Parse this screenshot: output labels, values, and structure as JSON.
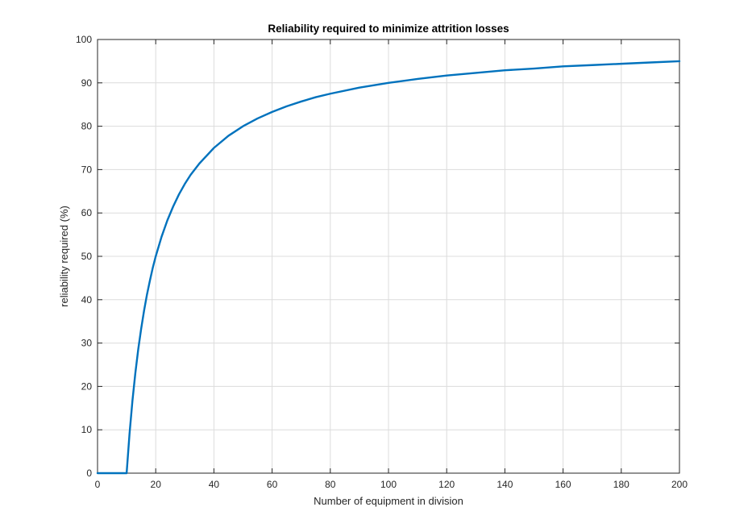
{
  "chart_data": {
    "type": "line",
    "title": "Reliability required to minimize attrition losses",
    "xlabel": "Number of equipment in division",
    "ylabel": "reliability required (%)",
    "xlim": [
      0,
      200
    ],
    "ylim": [
      0,
      100
    ],
    "xticks": [
      0,
      20,
      40,
      60,
      80,
      100,
      120,
      140,
      160,
      180,
      200
    ],
    "yticks": [
      0,
      10,
      20,
      30,
      40,
      50,
      60,
      70,
      80,
      90,
      100
    ],
    "grid": true,
    "series": [
      {
        "color": "#0072bd",
        "x": [
          0,
          5,
          9,
          10,
          11,
          12,
          13,
          14,
          15,
          16,
          17,
          18,
          19,
          20,
          22,
          24,
          26,
          28,
          30,
          32,
          35,
          40,
          45,
          50,
          55,
          60,
          65,
          70,
          75,
          80,
          90,
          100,
          110,
          120,
          130,
          140,
          150,
          160,
          170,
          180,
          190,
          200
        ],
        "y": [
          0,
          0,
          0,
          0,
          9.1,
          16.7,
          23.1,
          28.6,
          33.3,
          37.5,
          41.2,
          44.4,
          47.4,
          50.0,
          54.5,
          58.3,
          61.5,
          64.3,
          66.7,
          68.8,
          71.4,
          75.0,
          77.8,
          80.0,
          81.8,
          83.3,
          84.6,
          85.7,
          86.7,
          87.5,
          88.9,
          90.0,
          90.9,
          91.7,
          92.3,
          92.9,
          93.3,
          93.8,
          94.1,
          94.4,
          94.7,
          95.0
        ]
      }
    ]
  }
}
